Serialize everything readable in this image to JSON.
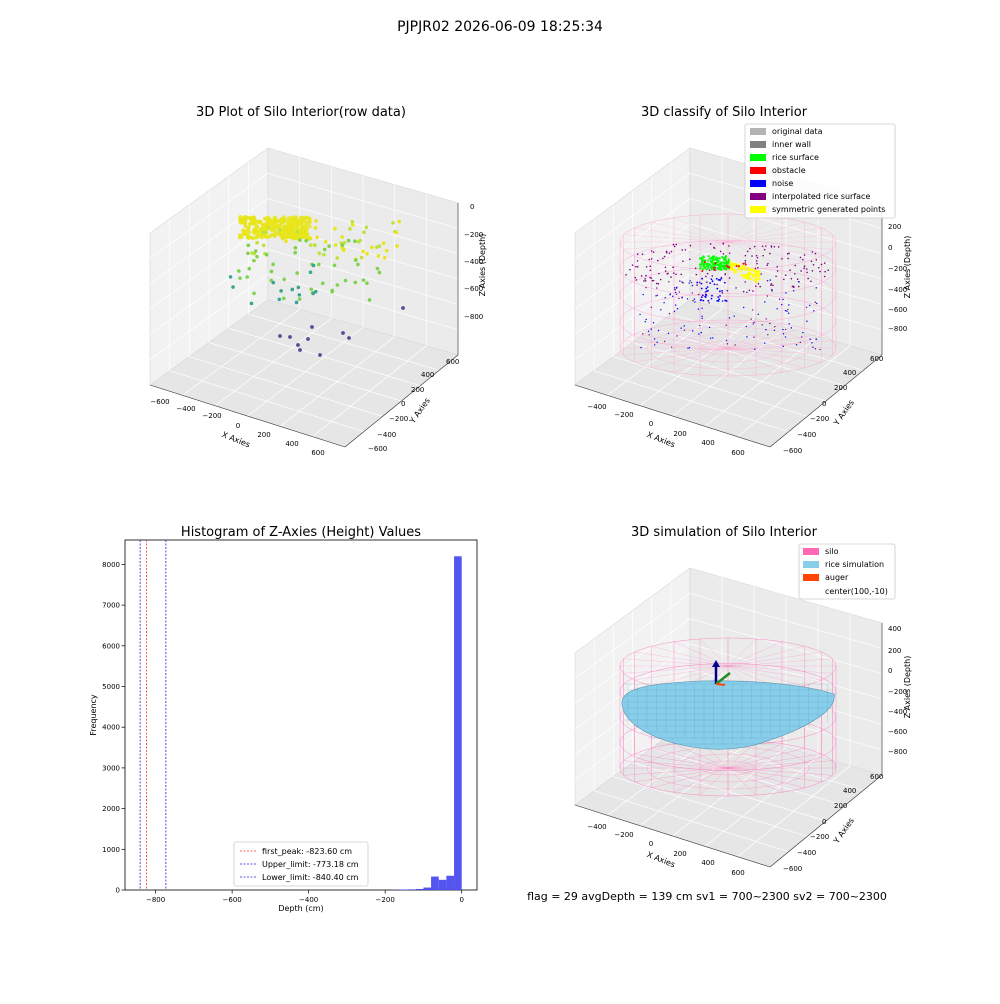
{
  "figure": {
    "suptitle": "PJPJR02 2026-06-09 18:25:34",
    "status_line": "flag = 29  avgDepth = 139 cm  sv1 = 700~2300  sv2 = 700~2300"
  },
  "colors": {
    "histogram_bar": "#4b4bf0",
    "first_peak_line": "#ff3333",
    "limit_line": "#2020cc",
    "silo_wire": "#ff69b4",
    "rice_fill": "#87ceeb",
    "scatter_yellow": "#e8e61a",
    "scatter_green": "#7dd24e",
    "scatter_teal": "#3aa58f",
    "scatter_purple": "#574c9a"
  },
  "chart_data": [
    {
      "type": "scatter",
      "title": "3D Plot of Silo Interior(row data)",
      "xlabel": "X Axies",
      "ylabel": "Y Axies",
      "zlabel": "Z Axies (Depth)",
      "x_ticks": [
        "−600",
        "−400",
        "−200",
        "0",
        "200",
        "400",
        "600"
      ],
      "y_ticks": [
        "−600",
        "−400",
        "−200",
        "0",
        "200",
        "400",
        "600"
      ],
      "z_ticks": [
        "0",
        "−200",
        "−400",
        "−600",
        "−800"
      ],
      "grid": true
    },
    {
      "type": "scatter",
      "title": "3D classify of Silo Interior",
      "xlabel": "X Axies",
      "ylabel": "Y Axies",
      "zlabel": "Z Axies (Depth)",
      "x_ticks": [
        "−400",
        "−200",
        "0",
        "200",
        "400",
        "600"
      ],
      "y_ticks": [
        "−600",
        "−400",
        "−200",
        "0",
        "200",
        "400",
        "600"
      ],
      "z_ticks": [
        "200",
        "0",
        "−200",
        "−400",
        "−600",
        "−800"
      ],
      "legend_position": "top-right",
      "legend": [
        {
          "label": "original data",
          "color": "#b3b3b3"
        },
        {
          "label": "inner wall",
          "color": "#808080"
        },
        {
          "label": "rice surface",
          "color": "#00ff00"
        },
        {
          "label": "obstacle",
          "color": "#ff0000"
        },
        {
          "label": "noise",
          "color": "#0000ff"
        },
        {
          "label": "interpolated rice surface",
          "color": "#800080"
        },
        {
          "label": "symmetric generated points",
          "color": "#ffff00"
        }
      ],
      "grid": true
    },
    {
      "type": "bar",
      "title": "Histogram of Z-Axies (Height) Values",
      "xlabel": "Depth (cm)",
      "ylabel": "Frequency",
      "xlim": [
        -880,
        40
      ],
      "ylim": [
        0,
        8600
      ],
      "x_ticks": [
        -800,
        -600,
        -400,
        -200,
        0
      ],
      "x_tick_labels": [
        "−800",
        "−600",
        "−400",
        "−200",
        "0"
      ],
      "y_ticks": [
        0,
        1000,
        2000,
        3000,
        4000,
        5000,
        6000,
        7000,
        8000
      ],
      "bins": [
        {
          "x0": -180,
          "x1": -160,
          "value": 10
        },
        {
          "x0": -160,
          "x1": -140,
          "value": 12
        },
        {
          "x0": -140,
          "x1": -120,
          "value": 15
        },
        {
          "x0": -120,
          "x1": -100,
          "value": 25
        },
        {
          "x0": -100,
          "x1": -80,
          "value": 60
        },
        {
          "x0": -80,
          "x1": -60,
          "value": 330
        },
        {
          "x0": -60,
          "x1": -40,
          "value": 250
        },
        {
          "x0": -40,
          "x1": -20,
          "value": 350
        },
        {
          "x0": -20,
          "x1": 0,
          "value": 8200
        }
      ],
      "vlines": [
        {
          "name": "first_peak: -823.60 cm",
          "x": -823.6,
          "color": "#ff3333"
        },
        {
          "name": "Upper_limit: -773.18 cm",
          "x": -773.18,
          "color": "#2020cc"
        },
        {
          "name": "Lower_limit: -840.40 cm",
          "x": -840.4,
          "color": "#2020cc"
        }
      ],
      "legend_position": "lower-center"
    },
    {
      "type": "area",
      "title": "3D simulation of Silo Interior",
      "xlabel": "X Axies",
      "ylabel": "Y Axies",
      "zlabel": "Z Axies (Depth)",
      "x_ticks": [
        "−400",
        "−200",
        "0",
        "200",
        "400",
        "600"
      ],
      "y_ticks": [
        "−600",
        "−400",
        "−200",
        "0",
        "200",
        "400",
        "600"
      ],
      "z_ticks": [
        "400",
        "200",
        "0",
        "−200",
        "−400",
        "−600",
        "−800"
      ],
      "legend_position": "top-right",
      "legend": [
        {
          "label": "silo",
          "color": "#ff69b4"
        },
        {
          "label": "rice simulation",
          "color": "#87ceeb"
        },
        {
          "label": "auger",
          "color": "#ff4500"
        },
        {
          "label": "center(100,-10)",
          "color": "none"
        }
      ],
      "grid": true
    }
  ]
}
